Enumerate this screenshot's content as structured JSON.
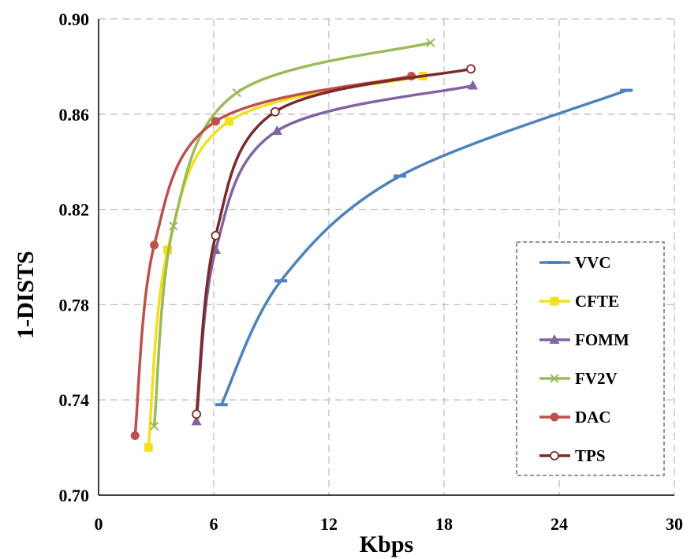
{
  "chart_data": {
    "type": "line",
    "title": "",
    "xlabel": "Kbps",
    "ylabel": "1-DISTS",
    "xlim": [
      0,
      30
    ],
    "ylim": [
      0.7,
      0.9
    ],
    "xticks": [
      0,
      6,
      12,
      18,
      24,
      30
    ],
    "xtick_labels": [
      "0",
      "6",
      "12",
      "18",
      "24",
      "30"
    ],
    "yticks": [
      0.7,
      0.74,
      0.78,
      0.82,
      0.86,
      0.9
    ],
    "ytick_labels": [
      "0.70",
      "0.74",
      "0.78",
      "0.82",
      "0.86",
      "0.90"
    ],
    "grid": "dashed",
    "legend_position": "bottom-right",
    "series": [
      {
        "name": "VVC",
        "color": "#4F81BD",
        "marker": "dash",
        "x": [
          6.4,
          9.5,
          15.7,
          27.5
        ],
        "y": [
          0.738,
          0.79,
          0.834,
          0.87
        ]
      },
      {
        "name": "CFTE",
        "color": "#F2E01E",
        "marker": "square",
        "x": [
          2.6,
          3.6,
          6.8,
          16.9
        ],
        "y": [
          0.72,
          0.803,
          0.857,
          0.876
        ]
      },
      {
        "name": "FOMM",
        "color": "#8064A2",
        "marker": "triangle",
        "x": [
          5.1,
          6.1,
          9.3,
          19.5
        ],
        "y": [
          0.731,
          0.803,
          0.853,
          0.872
        ]
      },
      {
        "name": "FV2V",
        "color": "#9BBB59",
        "marker": "x",
        "x": [
          2.9,
          3.9,
          7.2,
          17.3
        ],
        "y": [
          0.729,
          0.813,
          0.869,
          0.89
        ]
      },
      {
        "name": "DAC",
        "color": "#C0504D",
        "marker": "circle",
        "x": [
          1.9,
          2.9,
          6.1,
          16.3
        ],
        "y": [
          0.725,
          0.805,
          0.857,
          0.876
        ]
      },
      {
        "name": "TPS",
        "color": "#7B2A2A",
        "marker": "open-circle",
        "x": [
          5.1,
          6.1,
          9.2,
          19.4
        ],
        "y": [
          0.734,
          0.809,
          0.861,
          0.879
        ]
      }
    ]
  }
}
